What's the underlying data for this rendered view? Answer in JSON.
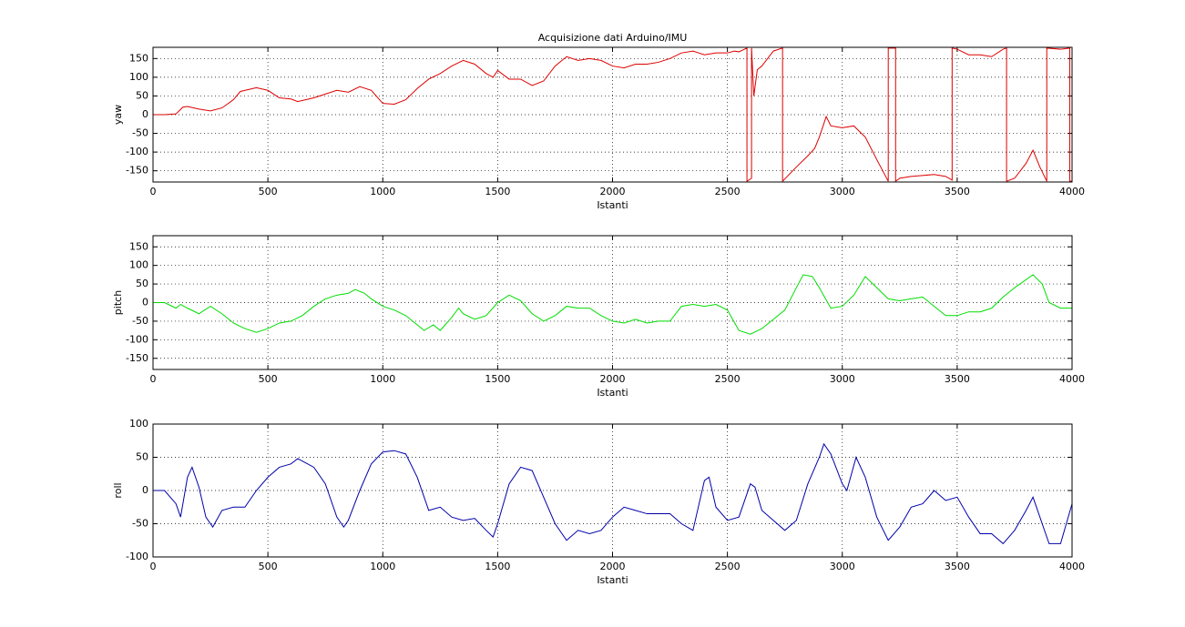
{
  "chart_data": [
    {
      "type": "line",
      "title": "Acquisizione dati Arduino/IMU",
      "xlabel": "Istanti",
      "ylabel": "yaw",
      "color": "#dd0000",
      "xlim": [
        0,
        4000
      ],
      "xticks": [
        0,
        500,
        1000,
        1500,
        2000,
        2500,
        3000,
        3500,
        4000
      ],
      "ylim": [
        -180,
        180
      ],
      "yticks": [
        -150,
        -100,
        -50,
        0,
        50,
        100,
        150
      ],
      "grid": true,
      "x": [
        0,
        50,
        100,
        130,
        150,
        200,
        250,
        300,
        350,
        380,
        450,
        500,
        550,
        600,
        630,
        700,
        800,
        850,
        900,
        950,
        1000,
        1050,
        1100,
        1150,
        1200,
        1250,
        1300,
        1350,
        1400,
        1450,
        1480,
        1500,
        1550,
        1600,
        1650,
        1700,
        1750,
        1800,
        1850,
        1900,
        1950,
        2000,
        2050,
        2100,
        2150,
        2200,
        2250,
        2300,
        2350,
        2400,
        2450,
        2500,
        2530,
        2550,
        2585,
        2585,
        2605,
        2605,
        2615,
        2630,
        2650,
        2700,
        2740,
        2740,
        2800,
        2850,
        2880,
        2900,
        2930,
        2950,
        3000,
        3050,
        3100,
        3150,
        3200,
        3200,
        3232,
        3232,
        3250,
        3300,
        3400,
        3450,
        3478,
        3478,
        3500,
        3550,
        3600,
        3650,
        3700,
        3715,
        3715,
        3750,
        3800,
        3830,
        3860,
        3890,
        3890,
        3950,
        3990,
        3990,
        4000
      ],
      "values": [
        0,
        0,
        2,
        20,
        22,
        15,
        10,
        18,
        40,
        62,
        72,
        65,
        45,
        42,
        35,
        45,
        65,
        60,
        75,
        65,
        30,
        28,
        40,
        70,
        95,
        110,
        130,
        145,
        135,
        110,
        100,
        118,
        95,
        95,
        78,
        90,
        130,
        155,
        145,
        150,
        145,
        130,
        125,
        135,
        135,
        140,
        150,
        165,
        170,
        160,
        165,
        165,
        170,
        168,
        178,
        -178,
        -170,
        178,
        50,
        120,
        130,
        170,
        178,
        -178,
        -140,
        -110,
        -90,
        -60,
        -5,
        -30,
        -35,
        -30,
        -60,
        -120,
        -178,
        178,
        178,
        -178,
        -170,
        -165,
        -160,
        -165,
        -175,
        178,
        175,
        160,
        160,
        155,
        175,
        178,
        -178,
        -170,
        -130,
        -95,
        -140,
        -178,
        178,
        175,
        178,
        -178,
        -178
      ]
    },
    {
      "type": "line",
      "xlabel": "Istanti",
      "ylabel": "pitch",
      "color": "#00dd00",
      "xlim": [
        0,
        4000
      ],
      "xticks": [
        0,
        500,
        1000,
        1500,
        2000,
        2500,
        3000,
        3500,
        4000
      ],
      "ylim": [
        -180,
        180
      ],
      "yticks": [
        -150,
        -100,
        -50,
        0,
        50,
        100,
        150
      ],
      "grid": true,
      "x": [
        0,
        50,
        100,
        120,
        150,
        200,
        250,
        300,
        350,
        400,
        450,
        500,
        550,
        600,
        650,
        700,
        750,
        800,
        850,
        880,
        920,
        950,
        1000,
        1050,
        1100,
        1150,
        1180,
        1220,
        1250,
        1300,
        1330,
        1350,
        1400,
        1450,
        1500,
        1550,
        1600,
        1650,
        1700,
        1750,
        1800,
        1850,
        1900,
        1950,
        2000,
        2050,
        2100,
        2150,
        2200,
        2250,
        2300,
        2350,
        2400,
        2450,
        2500,
        2550,
        2600,
        2650,
        2700,
        2750,
        2800,
        2830,
        2870,
        2900,
        2950,
        3000,
        3050,
        3100,
        3150,
        3200,
        3250,
        3300,
        3350,
        3400,
        3450,
        3500,
        3550,
        3600,
        3650,
        3700,
        3750,
        3830,
        3870,
        3900,
        3950,
        4000
      ],
      "values": [
        0,
        0,
        -15,
        -5,
        -15,
        -30,
        -10,
        -30,
        -55,
        -70,
        -80,
        -70,
        -55,
        -50,
        -35,
        -10,
        10,
        20,
        25,
        35,
        25,
        10,
        -10,
        -20,
        -35,
        -60,
        -75,
        -60,
        -75,
        -40,
        -15,
        -30,
        -45,
        -35,
        0,
        20,
        5,
        -30,
        -50,
        -35,
        -10,
        -15,
        -15,
        -35,
        -50,
        -55,
        -45,
        -55,
        -50,
        -50,
        -10,
        -5,
        -10,
        -5,
        -20,
        -75,
        -85,
        -70,
        -45,
        -20,
        40,
        75,
        70,
        40,
        -15,
        -10,
        20,
        70,
        40,
        10,
        5,
        10,
        15,
        -10,
        -35,
        -35,
        -25,
        -25,
        -15,
        15,
        40,
        75,
        50,
        0,
        -15,
        -15
      ]
    },
    {
      "type": "line",
      "xlabel": "Istanti",
      "ylabel": "roll",
      "color": "#0000aa",
      "xlim": [
        0,
        4000
      ],
      "xticks": [
        0,
        500,
        1000,
        1500,
        2000,
        2500,
        3000,
        3500,
        4000
      ],
      "ylim": [
        -100,
        100
      ],
      "yticks": [
        -100,
        -50,
        0,
        50,
        100
      ],
      "grid": true,
      "x": [
        0,
        50,
        100,
        120,
        150,
        170,
        200,
        230,
        260,
        300,
        350,
        400,
        450,
        500,
        550,
        600,
        630,
        700,
        750,
        800,
        830,
        850,
        900,
        950,
        1000,
        1050,
        1100,
        1150,
        1200,
        1250,
        1300,
        1350,
        1400,
        1450,
        1480,
        1500,
        1550,
        1600,
        1650,
        1700,
        1750,
        1800,
        1850,
        1900,
        1950,
        2000,
        2050,
        2100,
        2150,
        2200,
        2250,
        2300,
        2350,
        2400,
        2420,
        2450,
        2500,
        2550,
        2600,
        2620,
        2650,
        2700,
        2750,
        2800,
        2850,
        2900,
        2920,
        2950,
        3000,
        3020,
        3060,
        3100,
        3150,
        3200,
        3250,
        3300,
        3350,
        3400,
        3450,
        3500,
        3550,
        3600,
        3650,
        3700,
        3750,
        3800,
        3830,
        3870,
        3900,
        3950,
        4000
      ],
      "values": [
        0,
        0,
        -20,
        -40,
        20,
        35,
        5,
        -40,
        -55,
        -30,
        -25,
        -25,
        0,
        20,
        35,
        40,
        48,
        35,
        10,
        -40,
        -55,
        -45,
        0,
        40,
        58,
        60,
        55,
        20,
        -30,
        -25,
        -40,
        -45,
        -42,
        -60,
        -70,
        -50,
        10,
        35,
        30,
        -10,
        -50,
        -75,
        -60,
        -65,
        -60,
        -40,
        -25,
        -30,
        -35,
        -35,
        -35,
        -50,
        -60,
        15,
        20,
        -25,
        -45,
        -40,
        10,
        5,
        -30,
        -45,
        -60,
        -45,
        10,
        50,
        70,
        55,
        10,
        0,
        50,
        20,
        -40,
        -75,
        -55,
        -25,
        -20,
        0,
        -15,
        -10,
        -40,
        -65,
        -65,
        -80,
        -60,
        -30,
        -10,
        -50,
        -80,
        -80,
        -20
      ]
    }
  ]
}
